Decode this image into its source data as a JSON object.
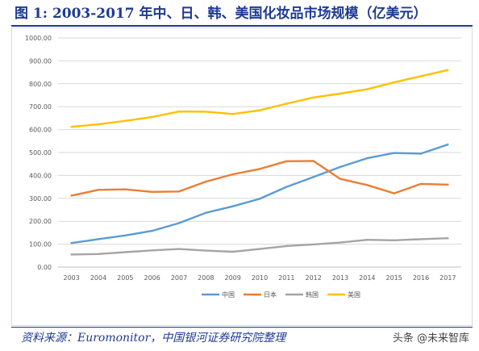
{
  "header": {
    "title": "图 1: 2003-2017 年中、日、韩、美国化妆品市场规模（亿美元）"
  },
  "footer": {
    "source": "资料来源：Euromonitor，中国银河证券研究院整理",
    "watermark": "头条 @未来智库"
  },
  "chart_data": {
    "type": "line",
    "title": "",
    "xlabel": "",
    "ylabel": "",
    "ylim": [
      0,
      1000
    ],
    "ytick_labels": [
      "0.00",
      "100.00",
      "200.00",
      "300.00",
      "400.00",
      "500.00",
      "600.00",
      "700.00",
      "800.00",
      "900.00",
      "1000.00"
    ],
    "grid": true,
    "legend_position": "bottom",
    "x": [
      "2003",
      "2004",
      "2005",
      "2006",
      "2007",
      "2008",
      "2009",
      "2010",
      "2011",
      "2012",
      "2013",
      "2014",
      "2015",
      "2016",
      "2017"
    ],
    "series": [
      {
        "name": "中国",
        "color": "#5b9bd5",
        "values": [
          105,
          122,
          138,
          158,
          192,
          237,
          265,
          298,
          350,
          393,
          437,
          475,
          498,
          495,
          535
        ]
      },
      {
        "name": "日本",
        "color": "#ed7d31",
        "values": [
          312,
          337,
          339,
          328,
          330,
          373,
          405,
          428,
          462,
          463,
          385,
          358,
          322,
          363,
          360
        ]
      },
      {
        "name": "韩国",
        "color": "#a5a5a5",
        "values": [
          55,
          57,
          65,
          73,
          79,
          72,
          67,
          79,
          92,
          99,
          107,
          119,
          117,
          122,
          126
        ]
      },
      {
        "name": "美国",
        "color": "#ffc000",
        "values": [
          612,
          623,
          638,
          655,
          679,
          678,
          668,
          684,
          713,
          740,
          757,
          776,
          806,
          833,
          860
        ]
      }
    ]
  }
}
